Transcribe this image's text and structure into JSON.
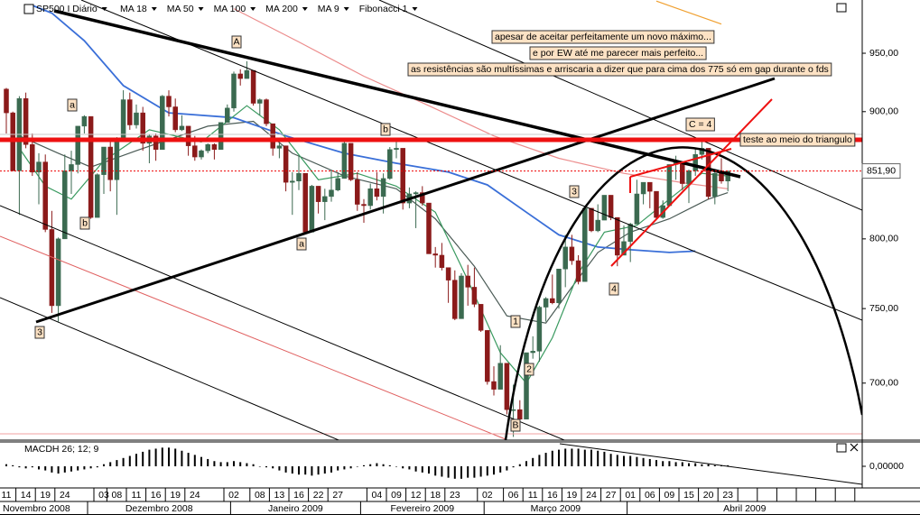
{
  "chart_data": [
    {
      "type": "candlestick",
      "title": "SP500 I Diário",
      "log": true,
      "ylim": [
        664,
        998
      ],
      "yticks": [
        {
          "value": 700,
          "label": "700,00"
        },
        {
          "value": 750,
          "label": "750,00"
        },
        {
          "value": 800,
          "label": "800,00"
        },
        {
          "value": 900,
          "label": "900,00"
        },
        {
          "value": 950,
          "label": "950,00"
        }
      ],
      "up_color": "#3b6a50",
      "down_color": "#8b1a1a",
      "categories": [
        "11",
        null,
        null,
        "14",
        null,
        null,
        "19",
        null,
        null,
        "24",
        null,
        null,
        null,
        null,
        null,
        "03",
        null,
        "08",
        null,
        null,
        "11",
        null,
        null,
        "16",
        null,
        null,
        "19",
        null,
        null,
        "24",
        null,
        null,
        null,
        null,
        null,
        "02",
        null,
        null,
        null,
        "08",
        null,
        null,
        "13",
        null,
        null,
        "16",
        null,
        null,
        "22",
        null,
        null,
        "27",
        null,
        null,
        null,
        null,
        null,
        "04",
        null,
        null,
        "09",
        null,
        null,
        "12",
        null,
        null,
        "18",
        null,
        null,
        "23",
        null,
        null,
        null,
        null,
        "02",
        null,
        null,
        null,
        "06",
        null,
        null,
        "11",
        null,
        null,
        "16",
        null,
        null,
        "19",
        null,
        null,
        "24",
        null,
        null,
        "27",
        null,
        null,
        "01",
        null,
        null,
        "06",
        null,
        null,
        "09",
        null,
        null,
        "15",
        null,
        null,
        "20",
        null,
        null,
        "23"
      ],
      "months": [
        "Novembro 2008",
        "Dezembro 2008",
        "Janeiro 2009",
        "Fevereiro 2009",
        "Março 2009",
        "Abril 2009"
      ],
      "candles": [
        [
          919,
          920,
          882,
          899
        ],
        [
          899,
          900,
          852,
          852
        ],
        [
          852,
          913,
          818,
          911
        ],
        [
          911,
          916,
          870,
          873
        ],
        [
          873,
          882,
          848,
          851
        ],
        [
          851,
          866,
          826,
          859
        ],
        [
          859,
          865,
          805,
          807
        ],
        [
          807,
          821,
          747,
          752
        ],
        [
          752,
          801,
          741,
          800
        ],
        [
          800,
          865,
          800,
          852
        ],
        [
          852,
          868,
          834,
          857
        ],
        [
          857,
          888,
          850,
          888
        ],
        [
          888,
          897,
          882,
          896
        ],
        [
          896,
          896,
          815,
          816
        ],
        [
          816,
          850,
          816,
          849
        ],
        [
          849,
          871,
          834,
          871
        ],
        [
          871,
          875,
          836,
          845
        ],
        [
          845,
          879,
          818,
          876
        ],
        [
          876,
          918,
          876,
          910
        ],
        [
          910,
          916,
          885,
          889
        ],
        [
          889,
          906,
          886,
          899
        ],
        [
          899,
          904,
          868,
          874
        ],
        [
          874,
          881,
          858,
          880
        ],
        [
          880,
          882,
          860,
          869
        ],
        [
          869,
          914,
          869,
          913
        ],
        [
          913,
          918,
          896,
          904
        ],
        [
          904,
          911,
          883,
          885
        ],
        [
          885,
          897,
          884,
          888
        ],
        [
          888,
          888,
          864,
          872
        ],
        [
          872,
          880,
          860,
          863
        ],
        [
          863,
          869,
          861,
          868
        ],
        [
          868,
          874,
          866,
          873
        ],
        [
          873,
          874,
          861,
          869
        ],
        [
          869,
          891,
          869,
          891
        ],
        [
          891,
          906,
          891,
          903
        ],
        [
          903,
          934,
          900,
          932
        ],
        [
          932,
          936,
          922,
          928
        ],
        [
          928,
          943,
          928,
          935
        ],
        [
          935,
          935,
          905,
          907
        ],
        [
          907,
          911,
          897,
          910
        ],
        [
          910,
          911,
          888,
          890
        ],
        [
          890,
          890,
          864,
          870
        ],
        [
          870,
          878,
          862,
          872
        ],
        [
          872,
          872,
          836,
          843
        ],
        [
          843,
          851,
          818,
          844
        ],
        [
          844,
          864,
          837,
          850
        ],
        [
          850,
          850,
          804,
          805
        ],
        [
          805,
          841,
          805,
          840
        ],
        [
          840,
          840,
          819,
          828
        ],
        [
          828,
          838,
          814,
          832
        ],
        [
          832,
          852,
          828,
          837
        ],
        [
          837,
          851,
          836,
          846
        ],
        [
          846,
          877,
          846,
          874
        ],
        [
          874,
          874,
          844,
          845
        ],
        [
          845,
          851,
          821,
          826
        ],
        [
          826,
          830,
          812,
          825
        ],
        [
          825,
          842,
          822,
          838
        ],
        [
          838,
          851,
          829,
          832
        ],
        [
          832,
          850,
          819,
          846
        ],
        [
          846,
          871,
          845,
          869
        ],
        [
          869,
          878,
          862,
          870
        ],
        [
          870,
          870,
          822,
          827
        ],
        [
          827,
          839,
          823,
          834
        ],
        [
          834,
          836,
          808,
          835
        ],
        [
          835,
          840,
          825,
          827
        ],
        [
          827,
          827,
          789,
          789
        ],
        [
          789,
          794,
          779,
          788
        ],
        [
          788,
          797,
          777,
          779
        ],
        [
          779,
          779,
          754,
          770
        ],
        [
          770,
          777,
          742,
          743
        ],
        [
          743,
          775,
          743,
          773
        ],
        [
          773,
          781,
          752,
          765
        ],
        [
          765,
          779,
          751,
          753
        ],
        [
          753,
          753,
          734,
          735
        ],
        [
          735,
          735,
          699,
          701
        ],
        [
          701,
          711,
          692,
          696
        ],
        [
          696,
          725,
          696,
          713
        ],
        [
          713,
          713,
          680,
          683
        ],
        [
          683,
          699,
          666,
          683
        ],
        [
          683,
          689,
          672,
          677
        ],
        [
          677,
          720,
          677,
          720
        ],
        [
          720,
          731,
          716,
          721
        ],
        [
          721,
          752,
          714,
          751
        ],
        [
          751,
          758,
          741,
          757
        ],
        [
          757,
          774,
          753,
          754
        ],
        [
          754,
          778,
          750,
          778
        ],
        [
          778,
          803,
          765,
          794
        ],
        [
          794,
          803,
          781,
          784
        ],
        [
          784,
          788,
          767,
          769
        ],
        [
          769,
          823,
          769,
          823
        ],
        [
          823,
          823,
          805,
          806
        ],
        [
          806,
          826,
          805,
          814
        ],
        [
          814,
          833,
          814,
          833
        ],
        [
          833,
          833,
          814,
          816
        ],
        [
          816,
          816,
          780,
          788
        ],
        [
          788,
          810,
          788,
          798
        ],
        [
          798,
          812,
          783,
          811
        ],
        [
          811,
          845,
          811,
          834
        ],
        [
          834,
          843,
          826,
          843
        ],
        [
          843,
          843,
          823,
          836
        ],
        [
          836,
          836,
          814,
          816
        ],
        [
          816,
          829,
          815,
          825
        ],
        [
          825,
          857,
          825,
          857
        ],
        [
          857,
          864,
          845,
          859
        ],
        [
          859,
          859,
          837,
          842
        ],
        [
          842,
          853,
          827,
          852
        ],
        [
          852,
          870,
          848,
          865
        ],
        [
          865,
          876,
          861,
          870
        ],
        [
          870,
          870,
          830,
          832
        ],
        [
          832,
          851,
          826,
          850
        ],
        [
          850,
          862,
          842,
          844
        ],
        [
          844,
          852,
          836,
          851.9
        ]
      ],
      "series": [
        {
          "name": "MA 18",
          "color": "#4a5a55",
          "x": [
            2,
            8,
            13,
            20,
            31,
            38,
            44,
            52,
            60,
            66,
            72,
            77,
            83,
            87,
            91,
            96,
            102,
            108,
            111
          ],
          "values": [
            880,
            866,
            855,
            868,
            888,
            892,
            866,
            848,
            838,
            815,
            780,
            745,
            740,
            765,
            790,
            805,
            815,
            830,
            835
          ]
        },
        {
          "name": "MA 50",
          "color": "#3a6fd8",
          "x": [
            4,
            7,
            12,
            18,
            25,
            35,
            43,
            52,
            60,
            68,
            74,
            80,
            85,
            91,
            96,
            102,
            106
          ],
          "values": [
            993,
            986,
            961,
            922,
            899,
            895,
            880,
            866,
            858,
            851,
            841,
            820,
            803,
            794,
            792,
            790,
            791
          ]
        },
        {
          "name": "MA 100",
          "color": "#e04040",
          "x": [
            35,
            45,
            55,
            65,
            75,
            85,
            95,
            105,
            111
          ],
          "values": [
            990,
            960,
            930,
            905,
            880,
            862,
            850,
            842,
            838
          ]
        },
        {
          "name": "MA 200",
          "color": "#f0a030",
          "x": [
            100,
            110
          ],
          "values": [
            997,
            976
          ]
        },
        {
          "name": "MA 9",
          "color": "#3a9a60",
          "x": [
            2,
            6,
            10,
            15,
            22,
            30,
            37,
            42,
            48,
            54,
            60,
            66,
            71,
            76,
            80,
            84,
            88,
            92,
            97,
            102,
            107,
            111
          ],
          "values": [
            870,
            840,
            830,
            860,
            885,
            875,
            905,
            885,
            845,
            850,
            840,
            820,
            770,
            720,
            700,
            730,
            775,
            805,
            810,
            830,
            850,
            848
          ]
        }
      ],
      "tools": [
        "Fibonacci 1"
      ],
      "last_price": {
        "value": 851.9,
        "label": "851,90"
      },
      "notes": [
        "apesar de aceitar perfeitamente um novo máximo...",
        "e por EW até me parecer mais perfeito...",
        "as resistências são multíssimas e arriscaria a dizer que para cima dos 775 só em gap durante o fds",
        "teste ao meio do triangulo",
        "C = 4"
      ],
      "wave_labels": [
        "A",
        "a",
        "b",
        "b",
        "a",
        "3",
        "1",
        "2",
        "3",
        "4",
        "B"
      ]
    },
    {
      "type": "bar",
      "title": "MACDH 26; 12; 9",
      "color": "#000000",
      "ylim": [
        -20,
        20
      ],
      "yticks": [
        {
          "value": 0,
          "label": "0,00000"
        }
      ],
      "values": [
        2,
        1,
        -1,
        -2,
        -1,
        -3,
        -4,
        -6,
        -7,
        -6,
        -5,
        -4,
        -3,
        -2,
        -1,
        2,
        4,
        6,
        8,
        10,
        12,
        14,
        16,
        17,
        18,
        18,
        17,
        15,
        13,
        11,
        9,
        7,
        5,
        4,
        4,
        5,
        4,
        3,
        2,
        0,
        -1,
        -2,
        -4,
        -6,
        -7,
        -8,
        -8,
        -9,
        -8,
        -7,
        -6,
        -4,
        -3,
        -2,
        0,
        1,
        2,
        3,
        2,
        1,
        0,
        -2,
        -3,
        -5,
        -6,
        -7,
        -9,
        -10,
        -11,
        -12,
        -12,
        -11,
        -11,
        -10,
        -9,
        -8,
        -6,
        -4,
        -1,
        2,
        5,
        8,
        11,
        13,
        15,
        16,
        17,
        17,
        17,
        16,
        16,
        15,
        14,
        12,
        11,
        10,
        10,
        9,
        8,
        7,
        6,
        5,
        5,
        4,
        4,
        3,
        3,
        2,
        2,
        1,
        1,
        1
      ]
    }
  ]
}
